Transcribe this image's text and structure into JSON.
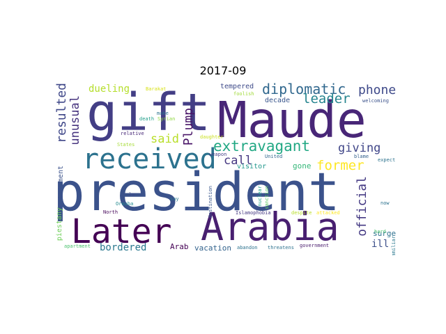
{
  "figure": {
    "title": "2017-09"
  },
  "words": [
    {
      "text": "president",
      "color": "#3b528b"
    },
    {
      "text": "Maude",
      "color": "#482677"
    },
    {
      "text": "gift",
      "color": "#433e85"
    },
    {
      "text": "Later",
      "color": "#440154"
    },
    {
      "text": "Arabia",
      "color": "#481f70"
    },
    {
      "text": "received",
      "color": "#2c728e"
    },
    {
      "text": "extravagant",
      "color": "#22a884"
    },
    {
      "text": "diplomatic",
      "color": "#31688e"
    },
    {
      "text": "giving",
      "color": "#404688"
    },
    {
      "text": "phone",
      "color": "#3e4989"
    },
    {
      "text": "leader",
      "color": "#25848e"
    },
    {
      "text": "former",
      "color": "#fde725"
    },
    {
      "text": "official",
      "color": "#443983"
    },
    {
      "text": "said",
      "color": "#b8de29"
    },
    {
      "text": "call",
      "color": "#453781"
    },
    {
      "text": "Plump",
      "color": "#481467"
    },
    {
      "text": "unusual",
      "color": "#46337e"
    },
    {
      "text": "resulted",
      "color": "#3f4788"
    },
    {
      "text": "dueling",
      "color": "#b5de2b"
    },
    {
      "text": "bordered",
      "color": "#2a788e"
    },
    {
      "text": "ill",
      "color": "#3c4f8a"
    },
    {
      "text": "surge",
      "color": "#2d708e"
    },
    {
      "text": "visitor",
      "color": "#1f978b"
    },
    {
      "text": "gone",
      "color": "#35b779"
    },
    {
      "text": "Arab",
      "color": "#440154"
    },
    {
      "text": "vacation",
      "color": "#33638d"
    },
    {
      "text": "decade",
      "color": "#39558c"
    },
    {
      "text": "tempered",
      "color": "#3e4a89"
    },
    {
      "text": "statement",
      "color": "#3b528b"
    },
    {
      "text": "piestany",
      "color": "#6ece58"
    },
    {
      "text": "foolish",
      "color": "#a0da39"
    },
    {
      "text": "Barakat",
      "color": "#d8e219"
    },
    {
      "text": "welcoming",
      "color": "#3b528b"
    },
    {
      "text": "make",
      "color": "#2c728e"
    },
    {
      "text": "Syrian",
      "color": "#90d743"
    },
    {
      "text": "death",
      "color": "#1f9e89"
    },
    {
      "text": "relative",
      "color": "#482878"
    },
    {
      "text": "States",
      "color": "#a5db36"
    },
    {
      "text": "daughter",
      "color": "#cae11f"
    },
    {
      "text": "weapon",
      "color": "#433e85"
    },
    {
      "text": "United",
      "color": "#31688e"
    },
    {
      "text": "blame",
      "color": "#34618d"
    },
    {
      "text": "expect",
      "color": "#2c728e"
    },
    {
      "text": "le",
      "color": "#3e4a89"
    },
    {
      "text": "Orouba",
      "color": "#23898e"
    },
    {
      "text": "say",
      "color": "#2a788e"
    },
    {
      "text": "destination",
      "color": "#39568c"
    },
    {
      "text": "nuclear",
      "color": "#1fa188"
    },
    {
      "text": "sanction",
      "color": "#5ec962"
    },
    {
      "text": "now",
      "color": "#2c728e"
    },
    {
      "text": "North",
      "color": "#450559"
    },
    {
      "text": "Islamophobia",
      "color": "#453882"
    },
    {
      "text": "despite",
      "color": "#b8de29"
    },
    {
      "text": "attacked",
      "color": "#fde725"
    },
    {
      "text": "hard",
      "color": "#4ac16d"
    },
    {
      "text": "familiar",
      "color": "#2a788e"
    },
    {
      "text": "apartment",
      "color": "#4ac16d"
    },
    {
      "text": "abandon",
      "color": "#2c728e"
    },
    {
      "text": "threatens",
      "color": "#2c728e"
    },
    {
      "text": "government",
      "color": "#481a6c"
    }
  ]
}
